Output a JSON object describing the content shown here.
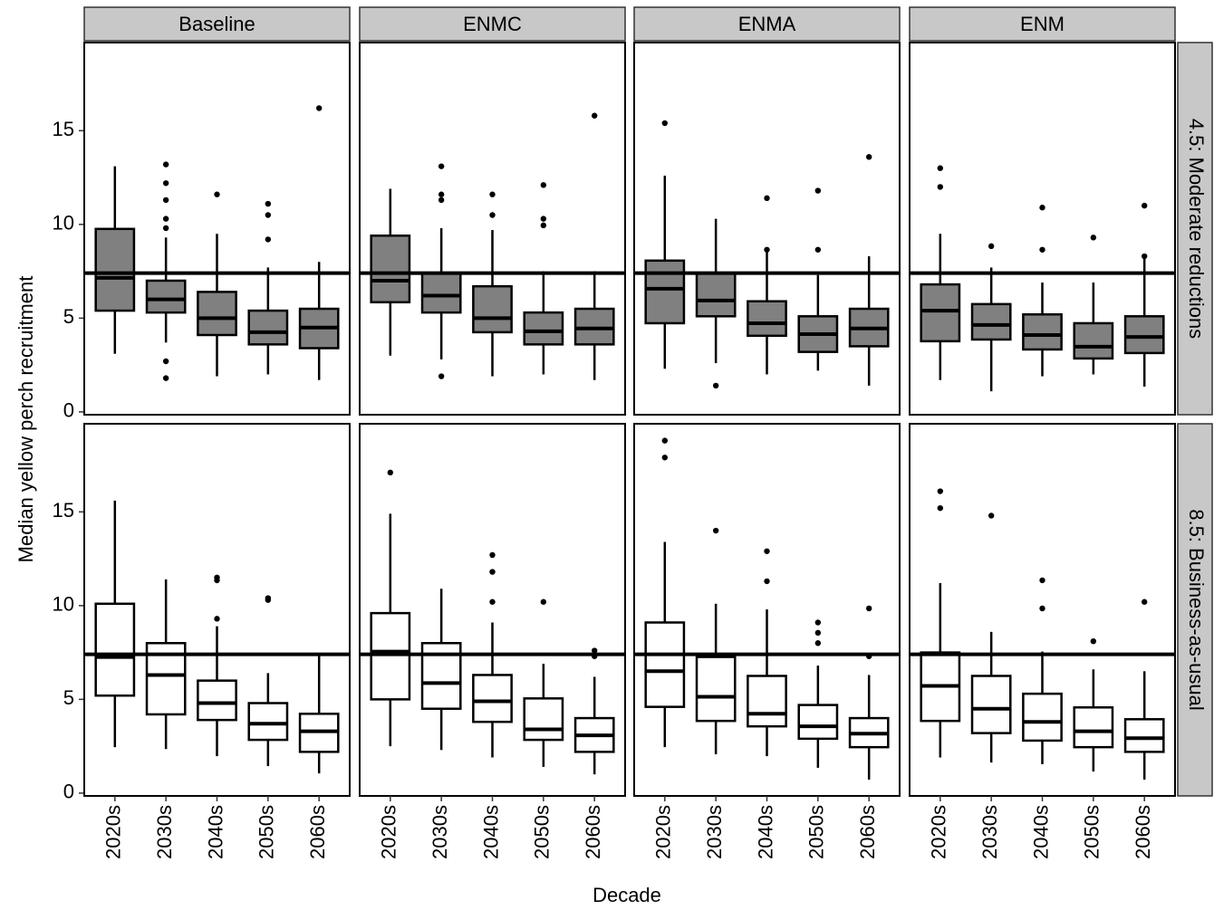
{
  "chart_data": {
    "type": "box",
    "xlabel": "Decade",
    "ylabel": "Median yellow perch recruitment",
    "categories": [
      "2020s",
      "2030s",
      "2040s",
      "2050s",
      "2060s"
    ],
    "columns": [
      "Baseline",
      "ENMC",
      "ENMA",
      "ENM"
    ],
    "ylim": [
      -0.15,
      19.7
    ],
    "yticks": [
      0,
      5,
      10,
      15
    ],
    "reference_line": 7.4,
    "rows": [
      {
        "label": "4.5: Moderate reductions",
        "fill": "#808080",
        "panels": [
          {
            "boxes": [
              {
                "min": 3.1,
                "q1": 5.4,
                "median": 7.15,
                "q3": 9.76,
                "max": 13.1,
                "outliers": []
              },
              {
                "min": 3.7,
                "q1": 5.3,
                "median": 6.0,
                "q3": 7.0,
                "max": 9.3,
                "outliers": [
                  13.2,
                  12.2,
                  11.3,
                  10.3,
                  9.8,
                  2.7,
                  1.8
                ]
              },
              {
                "min": 1.9,
                "q1": 4.1,
                "median": 5.0,
                "q3": 6.4,
                "max": 9.5,
                "outliers": [
                  11.6
                ]
              },
              {
                "min": 2.0,
                "q1": 3.6,
                "median": 4.25,
                "q3": 5.4,
                "max": 7.7,
                "outliers": [
                  11.1,
                  10.5,
                  9.2
                ]
              },
              {
                "min": 1.7,
                "q1": 3.4,
                "median": 4.5,
                "q3": 5.5,
                "max": 8.0,
                "outliers": [
                  16.2
                ]
              }
            ]
          },
          {
            "boxes": [
              {
                "min": 3.0,
                "q1": 5.85,
                "median": 7.0,
                "q3": 9.4,
                "max": 11.9,
                "outliers": []
              },
              {
                "min": 2.8,
                "q1": 5.3,
                "median": 6.2,
                "q3": 7.4,
                "max": 9.8,
                "outliers": [
                  13.1,
                  11.6,
                  11.3,
                  1.9
                ]
              },
              {
                "min": 1.9,
                "q1": 4.25,
                "median": 5.0,
                "q3": 6.7,
                "max": 9.7,
                "outliers": [
                  11.6,
                  10.5
                ]
              },
              {
                "min": 2.0,
                "q1": 3.6,
                "median": 4.3,
                "q3": 5.3,
                "max": 7.5,
                "outliers": [
                  12.1,
                  10.3,
                  9.95
                ]
              },
              {
                "min": 1.7,
                "q1": 3.6,
                "median": 4.45,
                "q3": 5.5,
                "max": 7.5,
                "outliers": [
                  15.8
                ]
              }
            ]
          },
          {
            "boxes": [
              {
                "min": 2.3,
                "q1": 4.73,
                "median": 6.57,
                "q3": 8.07,
                "max": 12.6,
                "outliers": [
                  15.4
                ]
              },
              {
                "min": 2.6,
                "q1": 5.1,
                "median": 5.94,
                "q3": 7.4,
                "max": 10.3,
                "outliers": [
                  1.4
                ]
              },
              {
                "min": 2.0,
                "q1": 4.06,
                "median": 4.73,
                "q3": 5.9,
                "max": 8.6,
                "outliers": [
                  11.4,
                  8.65
                ]
              },
              {
                "min": 2.2,
                "q1": 3.2,
                "median": 4.15,
                "q3": 5.1,
                "max": 7.3,
                "outliers": [
                  11.8,
                  8.65
                ]
              },
              {
                "min": 1.4,
                "q1": 3.5,
                "median": 4.45,
                "q3": 5.5,
                "max": 8.3,
                "outliers": [
                  13.6
                ]
              }
            ]
          },
          {
            "boxes": [
              {
                "min": 1.7,
                "q1": 3.77,
                "median": 5.4,
                "q3": 6.8,
                "max": 9.5,
                "outliers": [
                  13.0,
                  12.0
                ]
              },
              {
                "min": 1.1,
                "q1": 3.86,
                "median": 4.64,
                "q3": 5.75,
                "max": 7.7,
                "outliers": [
                  8.84
                ]
              },
              {
                "min": 1.9,
                "q1": 3.33,
                "median": 4.1,
                "q3": 5.2,
                "max": 6.9,
                "outliers": [
                  10.9,
                  8.65
                ]
              },
              {
                "min": 2.0,
                "q1": 2.85,
                "median": 3.48,
                "q3": 4.73,
                "max": 6.9,
                "outliers": [
                  9.3
                ]
              },
              {
                "min": 1.35,
                "q1": 3.14,
                "median": 4.0,
                "q3": 5.1,
                "max": 8.2,
                "outliers": [
                  11.0,
                  8.3
                ]
              }
            ]
          }
        ]
      },
      {
        "label": "8.5: Business-as-usual",
        "fill": "#ffffff",
        "panels": [
          {
            "boxes": [
              {
                "min": 2.45,
                "q1": 5.2,
                "median": 7.26,
                "q3": 10.1,
                "max": 15.6,
                "outliers": []
              },
              {
                "min": 2.35,
                "q1": 4.2,
                "median": 6.3,
                "q3": 8.0,
                "max": 11.4,
                "outliers": []
              },
              {
                "min": 1.97,
                "q1": 3.9,
                "median": 4.8,
                "q3": 6.0,
                "max": 8.9,
                "outliers": [
                  11.5,
                  11.35,
                  9.3
                ]
              },
              {
                "min": 1.44,
                "q1": 2.84,
                "median": 3.7,
                "q3": 4.8,
                "max": 6.4,
                "outliers": [
                  10.4,
                  10.3
                ]
              },
              {
                "min": 1.05,
                "q1": 2.2,
                "median": 3.3,
                "q3": 4.23,
                "max": 7.45,
                "outliers": []
              }
            ]
          },
          {
            "boxes": [
              {
                "min": 2.5,
                "q1": 5.0,
                "median": 7.55,
                "q3": 9.6,
                "max": 14.9,
                "outliers": [
                  17.1
                ]
              },
              {
                "min": 2.3,
                "q1": 4.5,
                "median": 5.87,
                "q3": 8.0,
                "max": 10.9,
                "outliers": []
              },
              {
                "min": 1.9,
                "q1": 3.8,
                "median": 4.9,
                "q3": 6.3,
                "max": 9.1,
                "outliers": [
                  12.7,
                  11.8,
                  10.2
                ]
              },
              {
                "min": 1.4,
                "q1": 2.84,
                "median": 3.4,
                "q3": 5.05,
                "max": 6.9,
                "outliers": [
                  10.2
                ]
              },
              {
                "min": 1.0,
                "q1": 2.2,
                "median": 3.08,
                "q3": 4.0,
                "max": 6.2,
                "outliers": [
                  7.6,
                  7.3
                ]
              }
            ]
          },
          {
            "boxes": [
              {
                "min": 2.45,
                "q1": 4.6,
                "median": 6.5,
                "q3": 9.1,
                "max": 13.4,
                "outliers": [
                  18.8,
                  17.9
                ]
              },
              {
                "min": 2.07,
                "q1": 3.85,
                "median": 5.14,
                "q3": 7.26,
                "max": 10.1,
                "outliers": [
                  14.0
                ]
              },
              {
                "min": 1.97,
                "q1": 3.56,
                "median": 4.23,
                "q3": 6.25,
                "max": 9.8,
                "outliers": [
                  12.9,
                  11.3
                ]
              },
              {
                "min": 1.35,
                "q1": 2.9,
                "median": 3.56,
                "q3": 4.7,
                "max": 6.8,
                "outliers": [
                  9.1,
                  8.55,
                  8.0
                ]
              },
              {
                "min": 0.72,
                "q1": 2.45,
                "median": 3.17,
                "q3": 4.0,
                "max": 6.3,
                "outliers": [
                  9.85,
                  7.3
                ]
              }
            ]
          },
          {
            "boxes": [
              {
                "min": 1.9,
                "q1": 3.85,
                "median": 5.72,
                "q3": 7.5,
                "max": 11.2,
                "outliers": [
                  16.1,
                  15.2
                ]
              },
              {
                "min": 1.63,
                "q1": 3.2,
                "median": 4.5,
                "q3": 6.25,
                "max": 8.6,
                "outliers": [
                  14.8
                ]
              },
              {
                "min": 1.54,
                "q1": 2.8,
                "median": 3.8,
                "q3": 5.3,
                "max": 7.55,
                "outliers": [
                  11.35,
                  9.85
                ]
              },
              {
                "min": 1.15,
                "q1": 2.45,
                "median": 3.3,
                "q3": 4.57,
                "max": 6.6,
                "outliers": [
                  8.1
                ]
              },
              {
                "min": 0.72,
                "q1": 2.2,
                "median": 2.93,
                "q3": 3.94,
                "max": 6.5,
                "outliers": [
                  10.2
                ]
              }
            ]
          }
        ]
      }
    ]
  }
}
